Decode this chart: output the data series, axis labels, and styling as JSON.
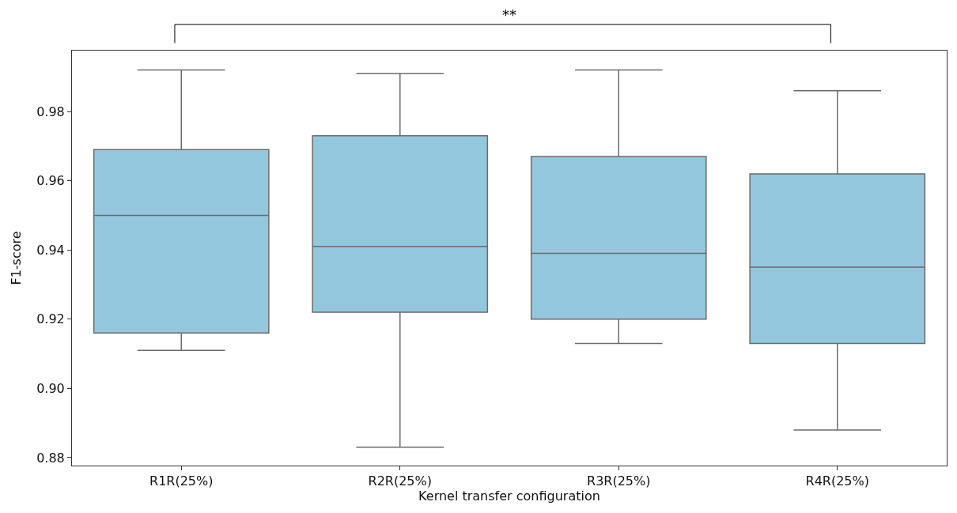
{
  "chart_data": {
    "type": "box",
    "xlabel": "Kernel transfer configuration",
    "ylabel": "F1-score",
    "categories": [
      "R1R(25%)",
      "R2R(25%)",
      "R3R(25%)",
      "R4R(25%)"
    ],
    "boxes": [
      {
        "low": 0.911,
        "q1": 0.916,
        "median": 0.95,
        "q3": 0.969,
        "high": 0.992
      },
      {
        "low": 0.883,
        "q1": 0.922,
        "median": 0.941,
        "q3": 0.973,
        "high": 0.991
      },
      {
        "low": 0.913,
        "q1": 0.92,
        "median": 0.939,
        "q3": 0.967,
        "high": 0.992
      },
      {
        "low": 0.888,
        "q1": 0.913,
        "median": 0.935,
        "q3": 0.962,
        "high": 0.986
      }
    ],
    "color": "#93c7de",
    "ylim": [
      0.8777,
      0.9976
    ],
    "yticks": [
      {
        "value": 0.88,
        "label": "0.88"
      },
      {
        "value": 0.9,
        "label": "0.90"
      },
      {
        "value": 0.92,
        "label": "0.92"
      },
      {
        "value": 0.94,
        "label": "0.94"
      },
      {
        "value": 0.96,
        "label": "0.96"
      },
      {
        "value": 0.98,
        "label": "0.98"
      }
    ],
    "annotations": [
      "**"
    ]
  }
}
